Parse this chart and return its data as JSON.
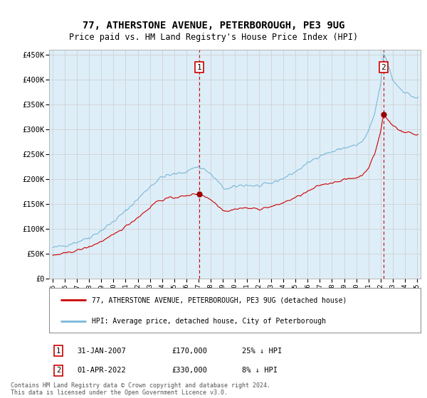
{
  "title": "77, ATHERSTONE AVENUE, PETERBOROUGH, PE3 9UG",
  "subtitle": "Price paid vs. HM Land Registry's House Price Index (HPI)",
  "footer": "Contains HM Land Registry data © Crown copyright and database right 2024.\nThis data is licensed under the Open Government Licence v3.0.",
  "legend_line1": "77, ATHERSTONE AVENUE, PETERBOROUGH, PE3 9UG (detached house)",
  "legend_line2": "HPI: Average price, detached house, City of Peterborough",
  "purchase1": {
    "label": "1",
    "date": "31-JAN-2007",
    "price": 170000,
    "year": 2007.08,
    "hpi_pct": "25% ↓ HPI"
  },
  "purchase2": {
    "label": "2",
    "date": "01-APR-2022",
    "price": 330000,
    "year": 2022.25,
    "hpi_pct": "8% ↓ HPI"
  },
  "ylim": [
    0,
    460000
  ],
  "xlim": [
    1994.7,
    2025.3
  ],
  "yticks": [
    0,
    50000,
    100000,
    150000,
    200000,
    250000,
    300000,
    350000,
    400000,
    450000
  ],
  "ytick_labels": [
    "£0",
    "£50K",
    "£100K",
    "£150K",
    "£200K",
    "£250K",
    "£300K",
    "£350K",
    "£400K",
    "£450K"
  ],
  "xticks": [
    1995,
    1996,
    1997,
    1998,
    1999,
    2000,
    2001,
    2002,
    2003,
    2004,
    2005,
    2006,
    2007,
    2008,
    2009,
    2010,
    2011,
    2012,
    2013,
    2014,
    2015,
    2016,
    2017,
    2018,
    2019,
    2020,
    2021,
    2022,
    2023,
    2024,
    2025
  ],
  "hpi_color": "#7ab8d8",
  "price_color": "#cc0000",
  "marker_color": "#990000",
  "grid_color": "#cccccc",
  "bg_color": "#deeef8",
  "box_color": "#cc0000"
}
